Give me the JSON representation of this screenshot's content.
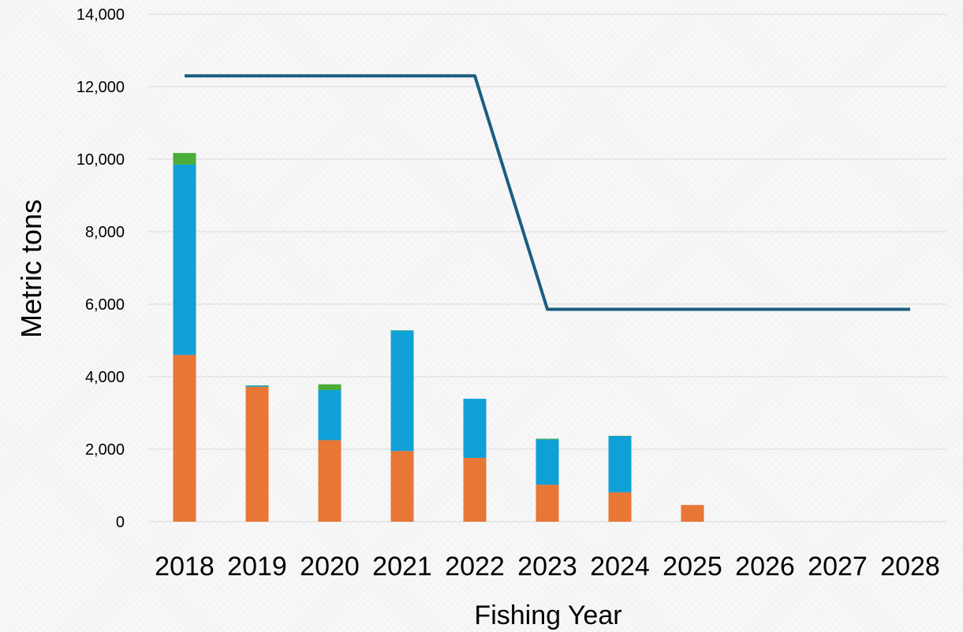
{
  "chart_data": {
    "type": "bar",
    "stacked": true,
    "title": "",
    "xlabel": "Fishing Year",
    "ylabel": "Metric tons",
    "ylim": [
      0,
      14000
    ],
    "y_ticks": [
      0,
      2000,
      4000,
      6000,
      8000,
      10000,
      12000,
      14000
    ],
    "y_tick_labels": [
      "0",
      "2,000",
      "4,000",
      "6,000",
      "8,000",
      "10,000",
      "12,000",
      "14,000"
    ],
    "categories": [
      "2018",
      "2019",
      "2020",
      "2021",
      "2022",
      "2023",
      "2024",
      "2025",
      "2026",
      "2027",
      "2028"
    ],
    "grid": "horizontal",
    "legend": "none",
    "series": [
      {
        "type": "bar",
        "color": "#e87634",
        "values": [
          4600,
          3720,
          2250,
          1950,
          1760,
          1020,
          810,
          460,
          0,
          0,
          0
        ]
      },
      {
        "type": "bar",
        "color": "#10a0d8",
        "values": [
          5250,
          30,
          1380,
          3320,
          1630,
          1250,
          1550,
          0,
          0,
          0,
          0
        ]
      },
      {
        "type": "bar",
        "color": "#4aad37",
        "values": [
          320,
          10,
          160,
          10,
          0,
          20,
          10,
          0,
          0,
          0,
          0
        ]
      },
      {
        "type": "line",
        "color": "#1b5e80",
        "values": [
          12300,
          12300,
          12300,
          12300,
          12300,
          5860,
          5860,
          5860,
          5860,
          5860,
          5860
        ]
      }
    ]
  }
}
